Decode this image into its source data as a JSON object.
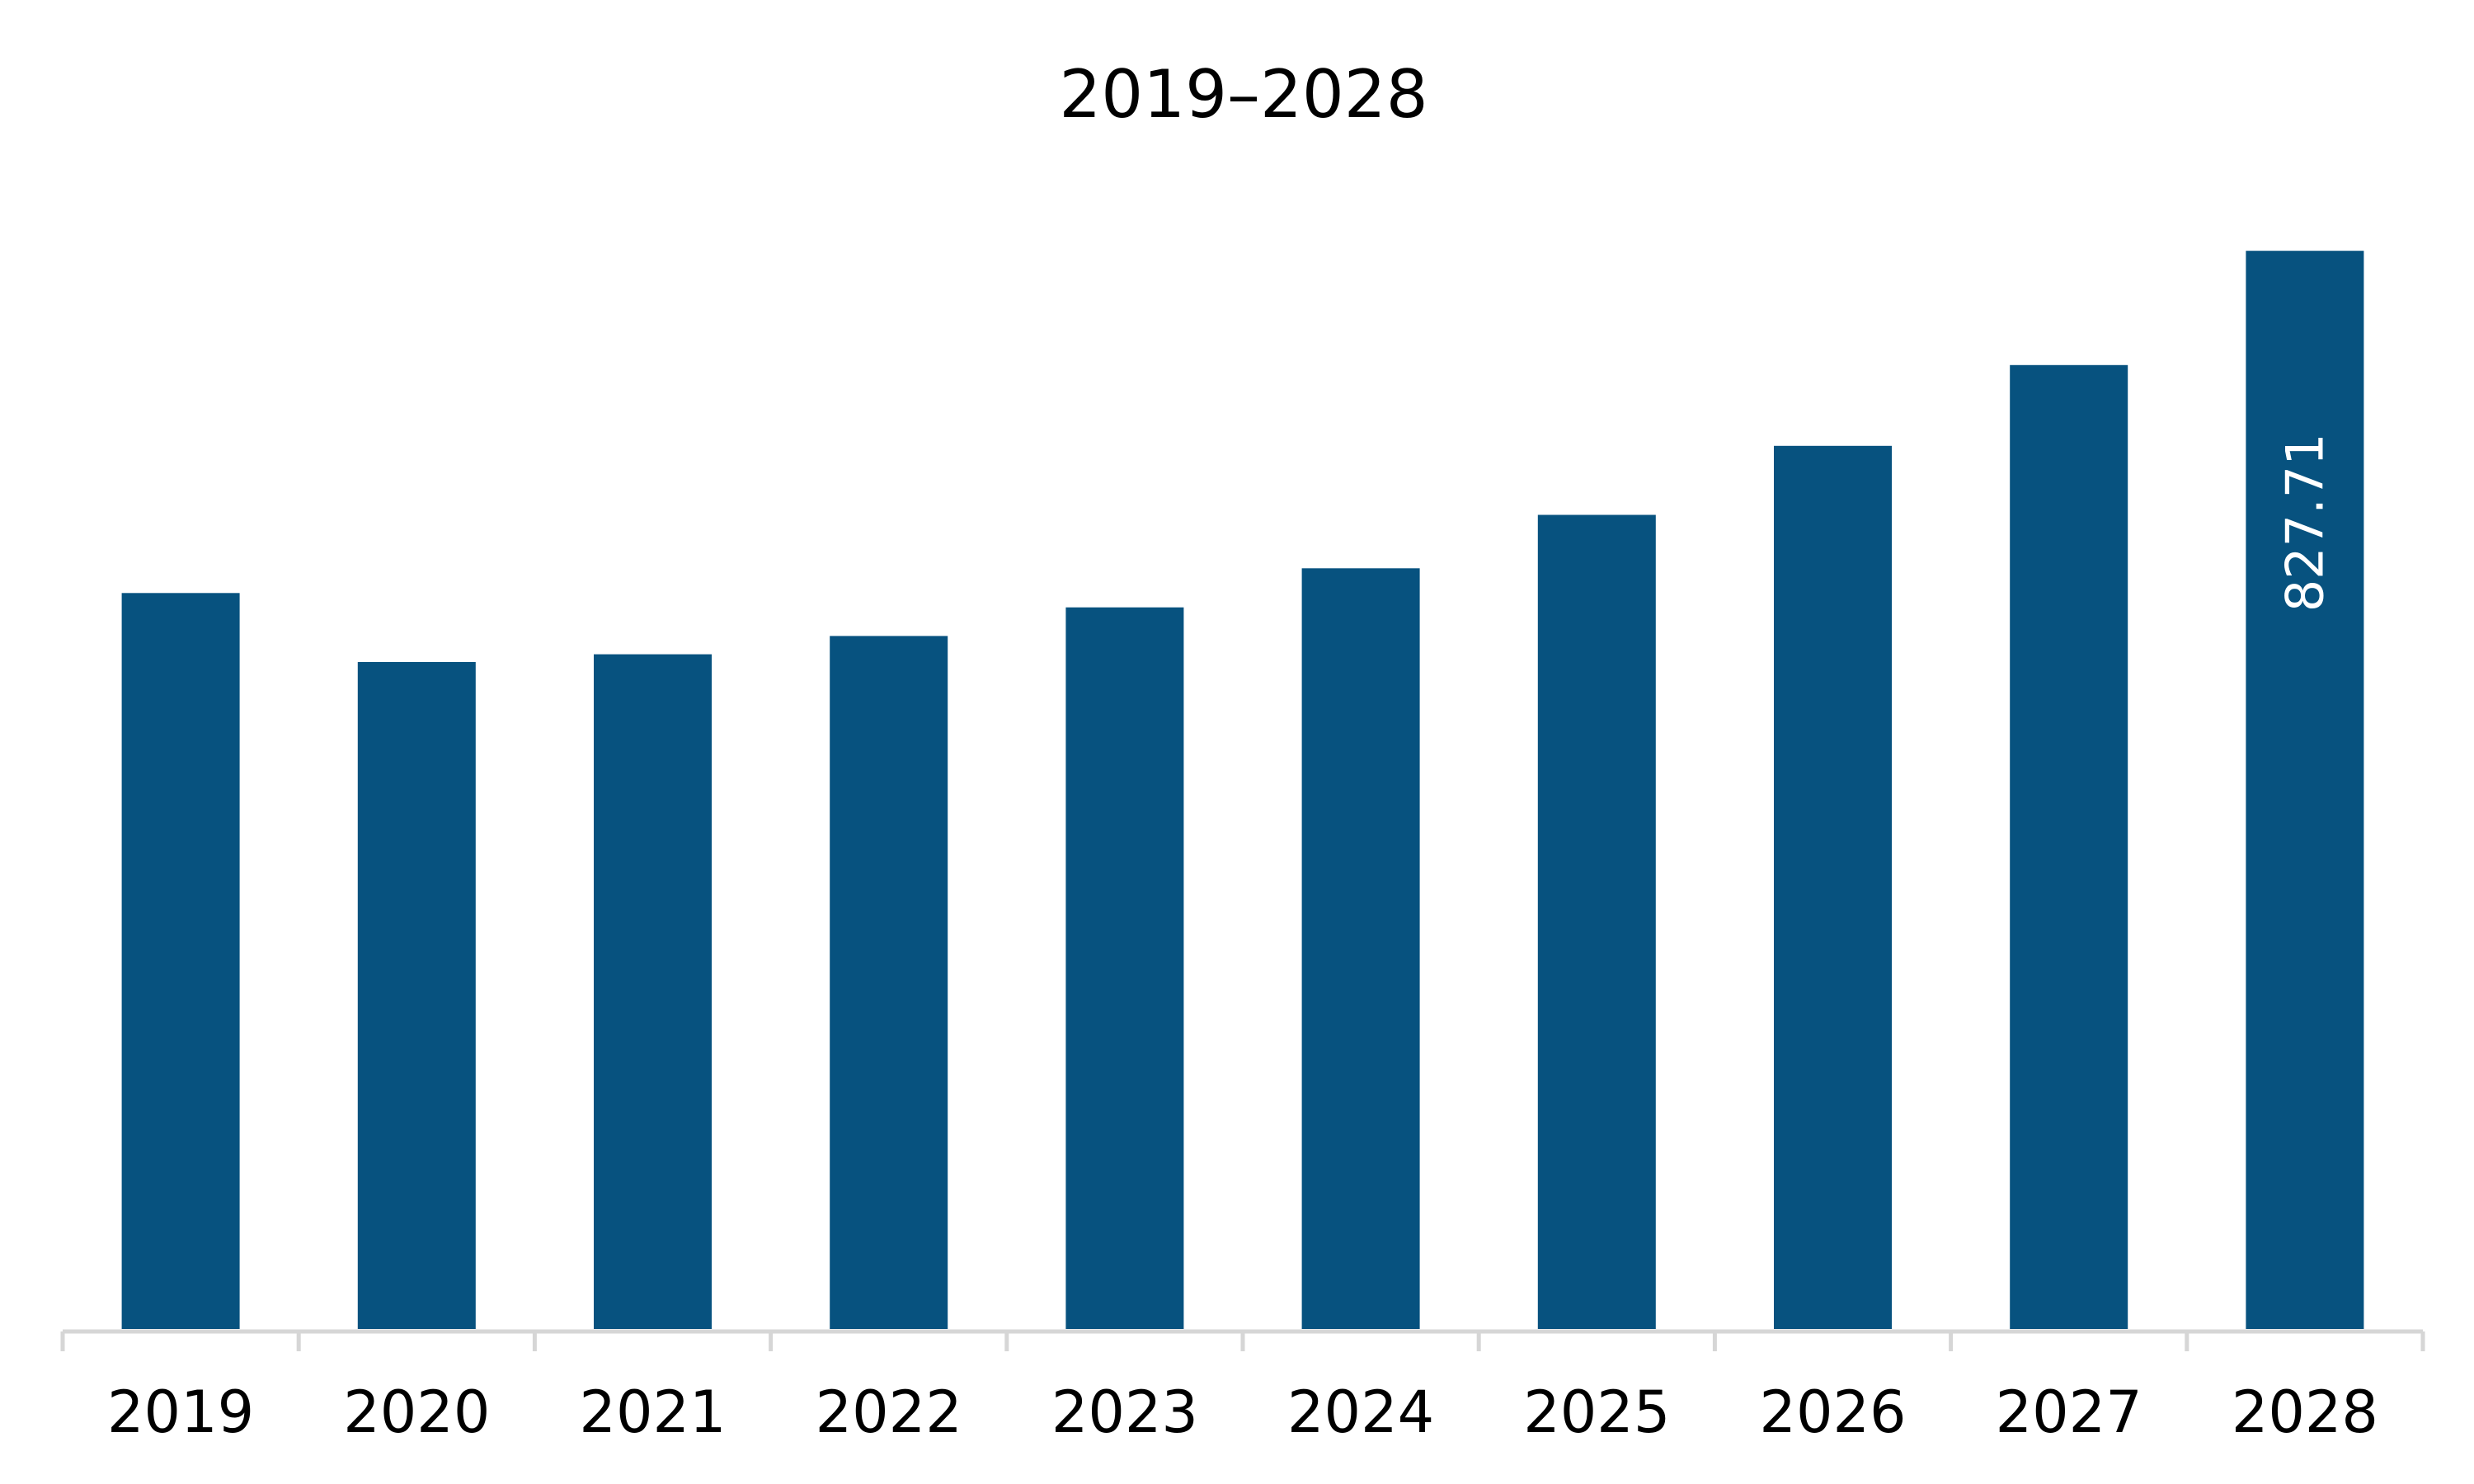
{
  "chart_data": {
    "type": "bar",
    "title": "2019–2028",
    "xlabel": "",
    "ylabel": "",
    "categories": [
      "2019",
      "2020",
      "2021",
      "2022",
      "2023",
      "2024",
      "2025",
      "2026",
      "2027",
      "2028"
    ],
    "values": [
      565,
      512,
      518,
      532,
      554,
      584,
      625,
      678,
      740,
      827.71
    ],
    "ylim": [
      0,
      900
    ],
    "data_labels": [
      {
        "category": "2028",
        "text": "827.71"
      }
    ],
    "grid": false,
    "legend": "none",
    "colors": {
      "bar": "#07527f",
      "axis": "#d6d6d6",
      "text": "#000000",
      "data_label": "#ffffff"
    }
  }
}
